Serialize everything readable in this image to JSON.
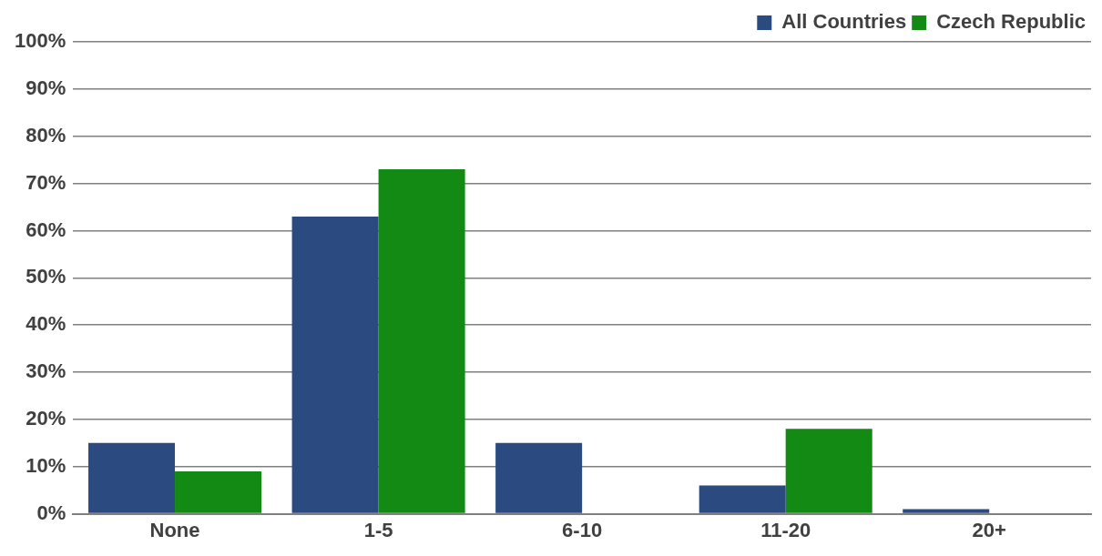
{
  "chart_data": {
    "type": "bar",
    "categories": [
      "None",
      "1-5",
      "6-10",
      "11-20",
      "20+"
    ],
    "series": [
      {
        "name": "All Countries",
        "color": "#2a4a80",
        "values": [
          15,
          63,
          15,
          6,
          1
        ]
      },
      {
        "name": "Czech Republic",
        "color": "#138a13",
        "values": [
          9,
          73,
          0,
          18,
          0
        ]
      }
    ],
    "ylim": [
      0,
      100
    ],
    "yticks": [
      {
        "value": 0,
        "label": "0%"
      },
      {
        "value": 10,
        "label": "10%"
      },
      {
        "value": 20,
        "label": "20%"
      },
      {
        "value": 30,
        "label": "30%"
      },
      {
        "value": 40,
        "label": "40%"
      },
      {
        "value": 50,
        "label": "50%"
      },
      {
        "value": 60,
        "label": "60%"
      },
      {
        "value": 70,
        "label": "70%"
      },
      {
        "value": 80,
        "label": "80%"
      },
      {
        "value": 90,
        "label": "90%"
      },
      {
        "value": 100,
        "label": "100%"
      }
    ],
    "grid": "y",
    "legend": "top right"
  }
}
